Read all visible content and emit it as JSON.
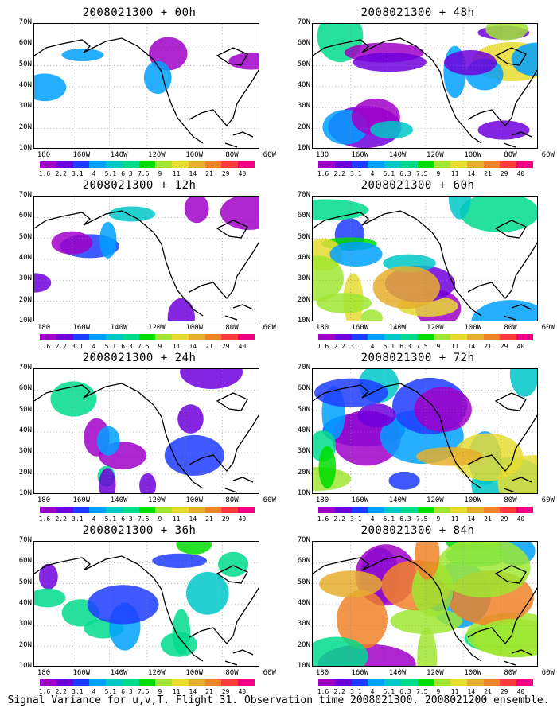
{
  "panels": [
    {
      "title": "2008021300 + 00h",
      "intensity": 0.05
    },
    {
      "title": "2008021300 + 48h",
      "intensity": 0.55
    },
    {
      "title": "2008021300 + 12h",
      "intensity": 0.2
    },
    {
      "title": "2008021300 + 60h",
      "intensity": 0.65
    },
    {
      "title": "2008021300 + 24h",
      "intensity": 0.3
    },
    {
      "title": "2008021300 + 72h",
      "intensity": 0.75
    },
    {
      "title": "2008021300 + 36h",
      "intensity": 0.4
    },
    {
      "title": "2008021300 + 84h",
      "intensity": 0.85
    }
  ],
  "lat_labels": [
    "70N",
    "60N",
    "50N",
    "40N",
    "30N",
    "20N",
    "10N"
  ],
  "lon_labels": [
    "180",
    "160W",
    "140W",
    "120W",
    "100W",
    "80W",
    "60W"
  ],
  "colorbar": {
    "colors": [
      "#ffffff",
      "#a000c8",
      "#6e00dc",
      "#1e3cff",
      "#00a0ff",
      "#00c8c8",
      "#00dc8c",
      "#00dc00",
      "#a0e632",
      "#e6dc32",
      "#e6af2d",
      "#f08228",
      "#fa3c3c",
      "#f00082"
    ],
    "labels": [
      "1.6",
      "2.2",
      "3.1",
      "4",
      "5.1",
      "6.3",
      "7.5",
      "9",
      "11",
      "14",
      "21",
      "29",
      "40"
    ]
  },
  "caption": "Signal Variance for u,v,T. Flight 31. Observation time 2008021300. 2008021200 ensemble."
}
